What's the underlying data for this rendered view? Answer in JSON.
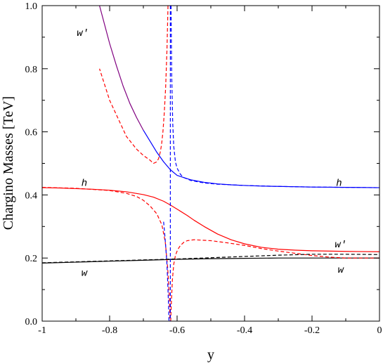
{
  "chart_data": {
    "type": "line",
    "xlabel": "y",
    "ylabel": "Chargino Masses [TeV]",
    "xlim": [
      -1,
      0
    ],
    "ylim": [
      0,
      1
    ],
    "x_ticks": [
      "-1",
      "-0.8",
      "-0.6",
      "-0.4",
      "-0.2",
      "0"
    ],
    "y_ticks": [
      "0.0",
      "0.2",
      "0.4",
      "0.6",
      "0.8",
      "1.0"
    ],
    "grid": false,
    "legend": "none",
    "annotations": [
      {
        "text": "w′",
        "x": -0.88,
        "y": 0.915
      },
      {
        "text": "h",
        "x": -0.875,
        "y": 0.44
      },
      {
        "text": "w",
        "x": -0.875,
        "y": 0.155
      },
      {
        "text": "h",
        "x": -0.12,
        "y": 0.44
      },
      {
        "text": "w′",
        "x": -0.115,
        "y": 0.245
      },
      {
        "text": "w",
        "x": -0.115,
        "y": 0.165
      }
    ],
    "series": [
      {
        "color": "#800080",
        "dash": false,
        "x": [
          -0.83,
          -0.8,
          -0.78,
          -0.76,
          -0.74,
          -0.72,
          -0.7
        ],
        "y": [
          1.0,
          0.88,
          0.81,
          0.745,
          0.69,
          0.645,
          0.605
        ]
      },
      {
        "color": "#0000ff",
        "dash": false,
        "x": [
          -0.7,
          -0.68,
          -0.66,
          -0.64,
          -0.62,
          -0.6,
          -0.56,
          -0.52,
          -0.48,
          -0.44,
          -0.4,
          -0.35,
          -0.3,
          -0.2,
          -0.1,
          0
        ],
        "y": [
          0.605,
          0.57,
          0.535,
          0.505,
          0.48,
          0.462,
          0.448,
          0.44,
          0.435,
          0.432,
          0.43,
          0.428,
          0.427,
          0.425,
          0.424,
          0.423
        ]
      },
      {
        "color": "#ff0000",
        "dash": false,
        "x": [
          -1,
          -0.95,
          -0.9,
          -0.85,
          -0.8,
          -0.75,
          -0.7,
          -0.67,
          -0.64,
          -0.62,
          -0.6,
          -0.57,
          -0.55,
          -0.52,
          -0.5,
          -0.48,
          -0.44,
          -0.4,
          -0.35,
          -0.3,
          -0.25,
          -0.2,
          -0.1,
          0
        ],
        "y": [
          0.423,
          0.422,
          0.42,
          0.418,
          0.415,
          0.41,
          0.401,
          0.393,
          0.38,
          0.368,
          0.355,
          0.335,
          0.32,
          0.3,
          0.288,
          0.276,
          0.258,
          0.245,
          0.234,
          0.228,
          0.225,
          0.223,
          0.221,
          0.22
        ]
      },
      {
        "color": "#000000",
        "dash": false,
        "x": [
          -1,
          -0.9,
          -0.8,
          -0.7,
          -0.6,
          -0.5,
          -0.4,
          -0.3,
          -0.2,
          -0.1,
          0
        ],
        "y": [
          0.184,
          0.187,
          0.19,
          0.193,
          0.196,
          0.198,
          0.199,
          0.2,
          0.2,
          0.2,
          0.2
        ]
      },
      {
        "color": "#ff0000",
        "dash": true,
        "x": [
          -1,
          -0.9,
          -0.8,
          -0.75,
          -0.72,
          -0.7,
          -0.68,
          -0.66,
          -0.645,
          -0.635,
          -0.628,
          -0.623,
          -0.621
        ],
        "y": [
          0.424,
          0.421,
          0.414,
          0.405,
          0.395,
          0.383,
          0.365,
          0.34,
          0.305,
          0.25,
          0.17,
          0.08,
          0.0
        ]
      },
      {
        "color": "#ff0000",
        "dash": true,
        "x": [
          -0.627,
          -0.63,
          -0.634,
          -0.638,
          -0.642,
          -0.646,
          -0.65,
          -0.655,
          -0.66,
          -0.67,
          -0.68,
          -0.7,
          -0.72,
          -0.75,
          -0.8,
          -0.83
        ],
        "y": [
          1.0,
          0.86,
          0.74,
          0.66,
          0.6,
          0.56,
          0.535,
          0.515,
          0.505,
          0.5,
          0.51,
          0.525,
          0.545,
          0.585,
          0.7,
          0.8
        ]
      },
      {
        "color": "#ff0000",
        "dash": true,
        "x": [
          -0.619,
          -0.617,
          -0.614,
          -0.61,
          -0.605,
          -0.6,
          -0.595,
          -0.59,
          -0.58,
          -0.57,
          -0.55,
          -0.5,
          -0.45,
          -0.4,
          -0.35,
          -0.3,
          -0.25,
          -0.2,
          -0.15,
          -0.1,
          0
        ],
        "y": [
          0.0,
          0.06,
          0.13,
          0.18,
          0.208,
          0.222,
          0.232,
          0.24,
          0.25,
          0.255,
          0.258,
          0.255,
          0.248,
          0.24,
          0.23,
          0.222,
          0.215,
          0.208,
          0.203,
          0.2,
          0.2
        ]
      },
      {
        "color": "#0000ff",
        "dash": true,
        "x": [
          -0.64,
          -0.637,
          -0.634,
          -0.63,
          -0.627,
          -0.625,
          -0.624
        ],
        "y": [
          0.315,
          0.28,
          0.24,
          0.18,
          0.1,
          0.04,
          0.0
        ]
      },
      {
        "color": "#0000ff",
        "dash": true,
        "x": [
          -0.618,
          -0.616,
          -0.613,
          -0.61,
          -0.605,
          -0.6,
          -0.59,
          -0.58,
          -0.56,
          -0.52,
          -0.48,
          -0.4,
          -0.3,
          -0.2,
          -0.1,
          0
        ],
        "y": [
          1.0,
          0.78,
          0.63,
          0.555,
          0.505,
          0.485,
          0.465,
          0.455,
          0.446,
          0.438,
          0.434,
          0.43,
          0.427,
          0.425,
          0.424,
          0.423
        ]
      },
      {
        "color": "#000000",
        "dash": true,
        "x": [
          -1,
          -0.9,
          -0.8,
          -0.7,
          -0.6,
          -0.5,
          -0.4,
          -0.3,
          -0.2,
          -0.1,
          0
        ],
        "y": [
          0.185,
          0.188,
          0.191,
          0.194,
          0.197,
          0.201,
          0.205,
          0.209,
          0.212,
          0.212,
          0.211
        ]
      }
    ],
    "vlines": [
      {
        "x": -0.62,
        "color": "#0000ff",
        "dash": true
      }
    ]
  }
}
